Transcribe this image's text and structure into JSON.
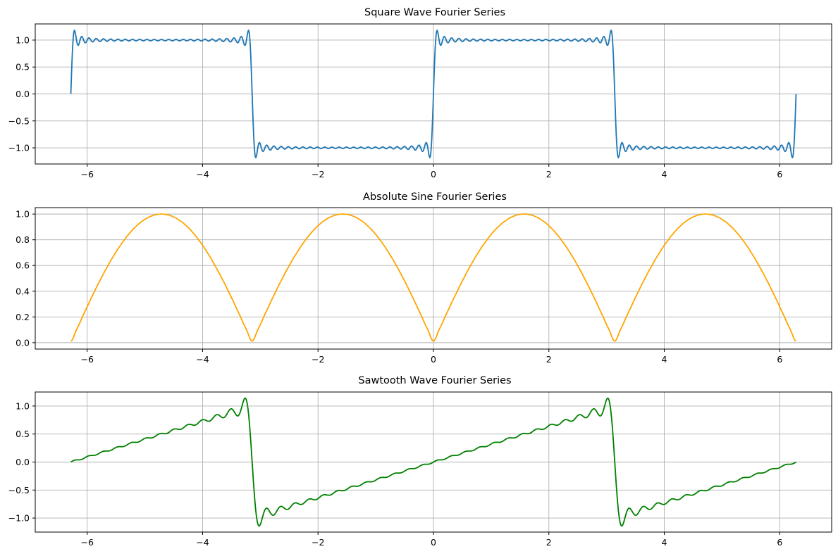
{
  "chart_data": [
    {
      "type": "line",
      "title": "Square Wave Fourier Series",
      "xlabel": "",
      "ylabel": "",
      "function": "square",
      "n_terms": 25,
      "xlim": [
        -6.9,
        6.9
      ],
      "ylim": [
        -1.3,
        1.3
      ],
      "xticks": [
        -6,
        -4,
        -2,
        0,
        2,
        4,
        6
      ],
      "xtick_labels": [
        "−6",
        "−4",
        "−2",
        "0",
        "2",
        "4",
        "6"
      ],
      "yticks": [
        -1.0,
        -0.5,
        0.0,
        0.5,
        1.0
      ],
      "ytick_labels": [
        "−1.0",
        "−0.5",
        "0.0",
        "0.5",
        "1.0"
      ],
      "grid": true,
      "color": "#1f77b4",
      "series": [
        {
          "x": [
            -6.283,
            -6.2,
            -6.0,
            -5.5,
            -5.0,
            -4.5,
            -4.0,
            -3.5,
            -3.2,
            -3.142,
            -3.05,
            -3.0,
            -2.5,
            -2.0,
            -1.5,
            -1.0,
            -0.5,
            -0.1,
            0.0,
            0.1,
            0.5,
            1.0,
            1.5,
            2.0,
            2.5,
            3.0,
            3.05,
            3.142,
            3.2,
            3.5,
            4.0,
            4.5,
            5.0,
            5.5,
            6.0,
            6.2,
            6.283
          ],
          "y": [
            0.0,
            1.15,
            1.0,
            1.0,
            1.0,
            1.0,
            1.0,
            1.0,
            1.15,
            0.0,
            -1.15,
            -1.0,
            -1.0,
            -1.0,
            -1.0,
            -1.0,
            -1.0,
            -1.15,
            0.0,
            1.15,
            1.0,
            1.0,
            1.0,
            1.0,
            1.0,
            1.0,
            1.15,
            0.0,
            -1.15,
            -1.0,
            -1.0,
            -1.0,
            -1.0,
            -1.0,
            -1.0,
            -1.15,
            0.0
          ]
        }
      ]
    },
    {
      "type": "line",
      "title": "Absolute Sine Fourier Series",
      "xlabel": "",
      "ylabel": "",
      "function": "abs_sine",
      "n_terms": 25,
      "xlim": [
        -6.9,
        6.9
      ],
      "ylim": [
        -0.05,
        1.05
      ],
      "xticks": [
        -6,
        -4,
        -2,
        0,
        2,
        4,
        6
      ],
      "xtick_labels": [
        "−6",
        "−4",
        "−2",
        "0",
        "2",
        "4",
        "6"
      ],
      "yticks": [
        0.0,
        0.2,
        0.4,
        0.6,
        0.8,
        1.0
      ],
      "ytick_labels": [
        "0.0",
        "0.2",
        "0.4",
        "0.6",
        "0.8",
        "1.0"
      ],
      "grid": true,
      "color": "#ffa500",
      "series": [
        {
          "x": [
            -6.283,
            -5.5,
            -4.712,
            -4.0,
            -3.142,
            -2.5,
            -1.571,
            -0.8,
            0.0,
            0.8,
            1.571,
            2.5,
            3.142,
            4.0,
            4.712,
            5.5,
            6.283
          ],
          "y": [
            0.0,
            0.71,
            1.0,
            0.76,
            0.0,
            0.6,
            1.0,
            0.72,
            0.0,
            0.72,
            1.0,
            0.6,
            0.0,
            0.76,
            1.0,
            0.71,
            0.0
          ]
        }
      ]
    },
    {
      "type": "line",
      "title": "Sawtooth Wave Fourier Series",
      "xlabel": "",
      "ylabel": "",
      "function": "sawtooth",
      "n_terms": 25,
      "xlim": [
        -6.9,
        6.9
      ],
      "ylim": [
        -1.25,
        1.25
      ],
      "xticks": [
        -6,
        -4,
        -2,
        0,
        2,
        4,
        6
      ],
      "xtick_labels": [
        "−6",
        "−4",
        "−2",
        "0",
        "2",
        "4",
        "6"
      ],
      "yticks": [
        -1.0,
        -0.5,
        0.0,
        0.5,
        1.0
      ],
      "ytick_labels": [
        "−1.0",
        "−0.5",
        "0.0",
        "0.5",
        "1.0"
      ],
      "grid": true,
      "color": "#008000",
      "series": [
        {
          "x": [
            -6.283,
            -5.0,
            -4.0,
            -3.3,
            -3.2,
            -3.142,
            -3.05,
            -3.0,
            -2.0,
            -1.0,
            0.0,
            1.0,
            2.0,
            3.0,
            3.05,
            3.142,
            3.2,
            3.3,
            4.0,
            5.0,
            6.283
          ],
          "y": [
            0.0,
            0.41,
            0.73,
            0.95,
            1.15,
            0.0,
            -1.15,
            -0.95,
            -0.64,
            -0.32,
            0.0,
            0.32,
            0.64,
            0.95,
            1.15,
            0.0,
            -1.15,
            -0.95,
            -0.73,
            -0.41,
            0.0
          ]
        }
      ]
    }
  ]
}
